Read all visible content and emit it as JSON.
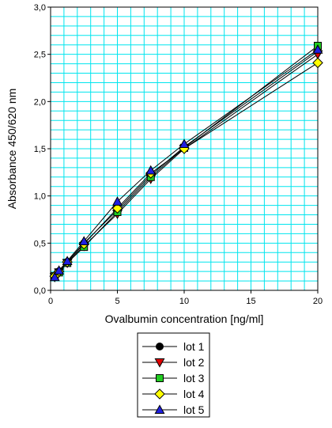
{
  "chart_data": {
    "type": "line",
    "xlabel": "Ovalbumin concentration [ng/ml]",
    "ylabel": "Absorbance 450/620 nm",
    "xlim": [
      0,
      20
    ],
    "ylim": [
      0,
      3
    ],
    "x_ticks": [
      "0",
      "5",
      "10",
      "15",
      "20"
    ],
    "y_ticks": [
      "0,0",
      "0,5",
      "1,0",
      "1,5",
      "2,0",
      "2,5",
      "3,0"
    ],
    "grid": true,
    "grid_color": "#00e5ee",
    "legend_position": "bottom-center",
    "x": [
      0.31,
      0.63,
      1.25,
      2.5,
      5,
      7.5,
      10,
      20
    ],
    "series": [
      {
        "name": "lot 1",
        "marker": "circle",
        "color": "#000000",
        "values": [
          0.14,
          0.2,
          0.3,
          0.5,
          0.85,
          1.22,
          1.52,
          2.53
        ]
      },
      {
        "name": "lot 2",
        "marker": "triangle-down",
        "color": "#e00000",
        "values": [
          0.14,
          0.19,
          0.29,
          0.47,
          0.81,
          1.18,
          1.5,
          2.5
        ]
      },
      {
        "name": "lot 3",
        "marker": "square",
        "color": "#22cc22",
        "values": [
          0.15,
          0.19,
          0.29,
          0.46,
          0.83,
          1.2,
          1.51,
          2.59
        ]
      },
      {
        "name": "lot 4",
        "marker": "diamond",
        "color": "#ffff00",
        "values": [
          0.15,
          0.2,
          0.3,
          0.49,
          0.87,
          1.24,
          1.5,
          2.41
        ]
      },
      {
        "name": "lot 5",
        "marker": "triangle-up",
        "color": "#1f1fe0",
        "values": [
          0.14,
          0.21,
          0.31,
          0.52,
          0.94,
          1.27,
          1.55,
          2.55
        ]
      }
    ]
  }
}
